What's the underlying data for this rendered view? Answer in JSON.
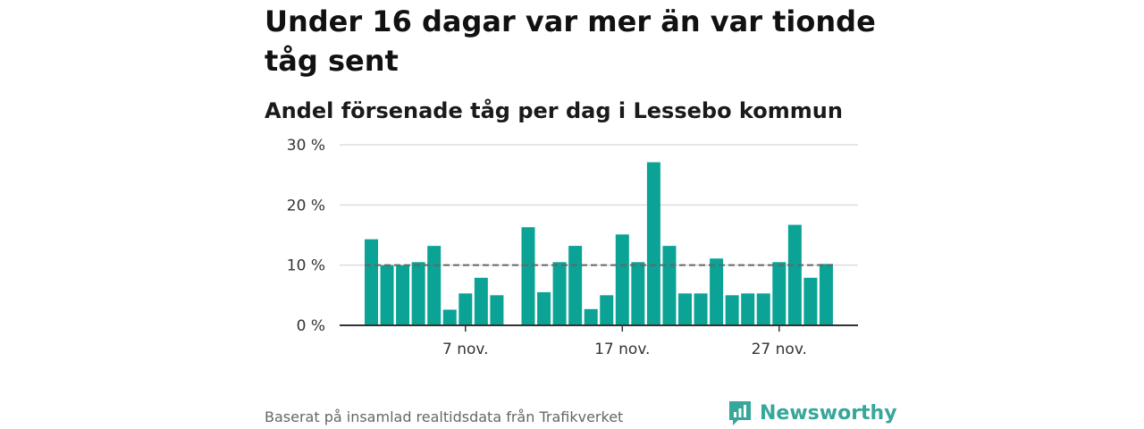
{
  "header": {
    "title": "Under 16 dagar var mer än var tionde tåg sent",
    "subtitle": "Andel försenade tåg per dag i Lessebo kommun"
  },
  "footer": {
    "source": "Baserat på insamlad realtidsdata från Trafikverket",
    "brand": "Newsworthy"
  },
  "colors": {
    "bar": "#0aa396",
    "reference_line": "#666666",
    "grid": "#dddddd",
    "brand": "#36a79a"
  },
  "chart_data": {
    "type": "bar",
    "x": [
      1,
      2,
      3,
      4,
      5,
      6,
      7,
      8,
      9,
      10,
      11,
      12,
      13,
      14,
      15,
      16,
      17,
      18,
      19,
      20,
      21,
      22,
      23,
      24,
      25,
      26,
      27,
      28,
      29,
      30
    ],
    "values": [
      14.3,
      10,
      10,
      10.5,
      13.2,
      2.6,
      5.3,
      7.9,
      5,
      null,
      16.3,
      5.5,
      10.5,
      13.2,
      2.7,
      5,
      15.1,
      10.5,
      27.1,
      13.2,
      5.3,
      5.3,
      11.1,
      5,
      5.3,
      5.3,
      10.5,
      16.7,
      7.9,
      10.2
    ],
    "ylim": [
      0,
      30
    ],
    "y_ticks": [
      0,
      10,
      20,
      30
    ],
    "y_tick_labels": [
      "0 %",
      "10 %",
      "20 %",
      "30 %"
    ],
    "x_ticks": [
      7,
      17,
      27
    ],
    "x_tick_labels": [
      "7 nov.",
      "17 nov.",
      "27 nov."
    ],
    "reference_line": 10,
    "grid": true
  }
}
